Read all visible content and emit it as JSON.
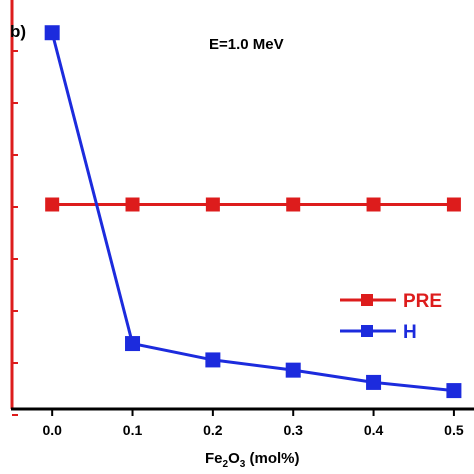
{
  "chart_data": {
    "type": "line",
    "panel_label": "b)",
    "annotation": "E=1.0 MeV",
    "xlabel_parts": [
      "Fe",
      "2",
      "O",
      "3",
      "  (mol%)"
    ],
    "x": [
      0.0,
      0.1,
      0.2,
      0.3,
      0.4,
      0.5
    ],
    "x_tick_labels": [
      "0.0",
      "0.1",
      "0.2",
      "0.3",
      "0.4",
      "0.5"
    ],
    "xlim": [
      -0.05,
      0.525
    ],
    "ylim": [
      0,
      10
    ],
    "y_tick_count": 8,
    "legend_position": "lower-right",
    "series": [
      {
        "name": "PRE",
        "color": "#dd1c1c",
        "values": [
          5.0,
          5.0,
          5.0,
          5.0,
          5.0,
          5.0
        ]
      },
      {
        "name": "H",
        "color": "#1c2bdd",
        "values": [
          9.2,
          1.6,
          1.2,
          0.95,
          0.65,
          0.45
        ]
      }
    ],
    "axis_color_left": "#dd1c1c",
    "axis_color_bottom": "#000000"
  }
}
